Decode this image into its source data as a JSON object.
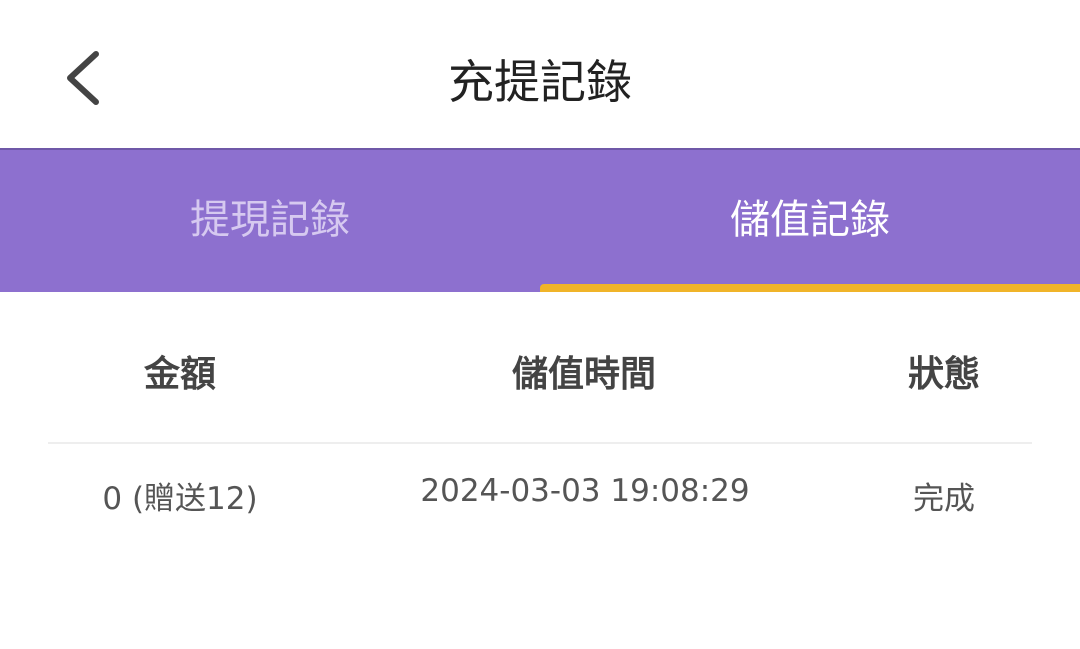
{
  "header": {
    "title": "充提記錄",
    "back_icon": "chevron-left-icon"
  },
  "tabs": [
    {
      "label": "提現記錄",
      "active": false
    },
    {
      "label": "儲值記錄",
      "active": true
    }
  ],
  "colors": {
    "tab_bar": "#8d70cf",
    "indicator": "#f0b429"
  },
  "table": {
    "headers": [
      "金額",
      "儲值時間",
      "狀態"
    ],
    "rows": [
      [
        "0 (贈送12)",
        "2024-03-03 19:08:29",
        "完成"
      ]
    ]
  }
}
